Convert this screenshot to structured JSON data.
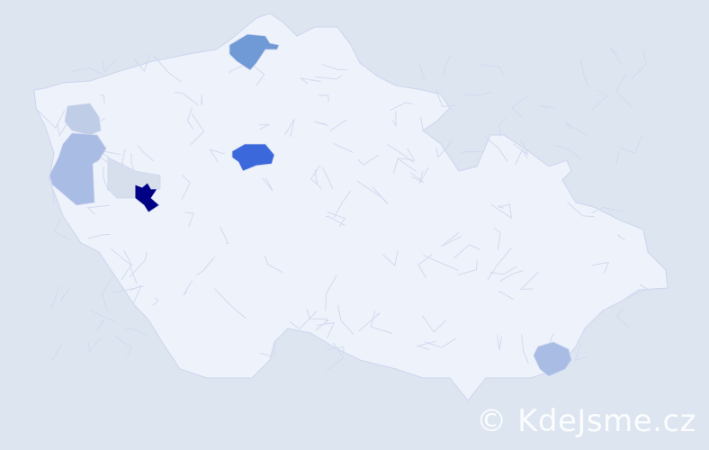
{
  "map": {
    "background_color": "#dde5f1",
    "base_region_color": "#eef2fa",
    "border_color": "#cdd5ef",
    "highlighted_regions": [
      {
        "name": "north-region",
        "color": "#6f9ad6"
      },
      {
        "name": "central-region",
        "color": "#3b68db"
      },
      {
        "name": "west-darkest-region",
        "color": "#000084"
      },
      {
        "name": "west-grey-region",
        "color": "#d8dfec"
      },
      {
        "name": "northwest-light-region",
        "color": "#c0cde6"
      },
      {
        "name": "west-light-region",
        "color": "#a8bce4"
      },
      {
        "name": "southeast-light-region",
        "color": "#a8bce4"
      }
    ]
  },
  "watermark": {
    "text": "© KdeJsme.cz"
  }
}
